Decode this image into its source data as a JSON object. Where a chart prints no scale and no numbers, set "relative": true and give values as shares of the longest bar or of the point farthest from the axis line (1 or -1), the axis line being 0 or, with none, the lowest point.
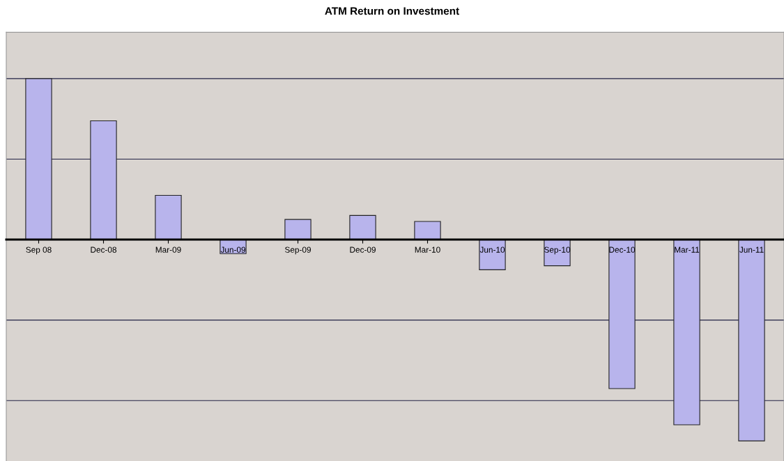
{
  "chart_data": {
    "type": "bar",
    "title": "ATM Return on Investment",
    "categories": [
      "Sep 08",
      "Dec-08",
      "Mar-09",
      "Jun-09",
      "Sep-09",
      "Dec-09",
      "Mar-10",
      "Jun-10",
      "Sep-10",
      "Dec-10",
      "Mar-11",
      "Jun-11"
    ],
    "values": [
      0.8,
      0.59,
      0.22,
      -0.07,
      0.1,
      0.12,
      0.09,
      -0.15,
      -0.13,
      -0.74,
      -0.92,
      -1
    ],
    "color": "#b8b4ec",
    "relative": true,
    "grid": "y",
    "legend": false
  }
}
